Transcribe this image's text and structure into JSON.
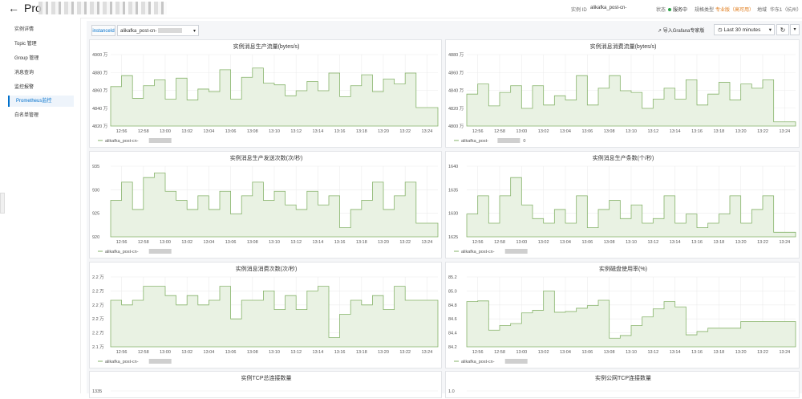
{
  "header": {
    "back_icon": "arrow-left-icon",
    "title": "Pro",
    "instance_id_label": "实例 ID",
    "instance_id_value": "alikafka_post-cn-",
    "status_label": "状态",
    "status_value": "服务中",
    "spec_label": "规格类型",
    "spec_value": "专业版（高可用）",
    "region_label": "地域",
    "region_value": "华东1（杭州）",
    "colors": {
      "accent": "#0070cc",
      "spec": "#e07b1a",
      "status": "#2ba245"
    }
  },
  "sidebar": {
    "items": [
      {
        "label": "实例详情"
      },
      {
        "label": "Topic 管理"
      },
      {
        "label": "Group 管理"
      },
      {
        "label": "消息查询"
      },
      {
        "label": "监控报警"
      },
      {
        "label": "Prometheus监控",
        "active": true
      },
      {
        "label": "白名单管理"
      }
    ]
  },
  "toolbar": {
    "instance_label": "instanceId",
    "instance_value": "alikafka_post-cn-",
    "grafana_label": "导入Grafana专家版",
    "time_range": "Last 30 minutes",
    "refresh_icon": "refresh-icon"
  },
  "x_ticks": [
    "12:56",
    "12:58",
    "13:00",
    "13:02",
    "13:04",
    "13:06",
    "13:08",
    "13:10",
    "13:12",
    "13:14",
    "13:16",
    "13:18",
    "13:20",
    "13:22",
    "13:24"
  ],
  "chart_data": [
    {
      "type": "area",
      "title": "实例消息生产流量(bytes/s)",
      "y_ticks": [
        "4820 万",
        "4840 万",
        "4860 万",
        "4880 万",
        "4900 万"
      ],
      "ylim": [
        4820,
        4905
      ],
      "legend": "alikafka_post-cn-",
      "x": [
        "12:55",
        "12:56",
        "12:57",
        "12:58",
        "12:59",
        "13:00",
        "13:01",
        "13:02",
        "13:03",
        "13:04",
        "13:05",
        "13:06",
        "13:07",
        "13:08",
        "13:09",
        "13:10",
        "13:11",
        "13:12",
        "13:13",
        "13:14",
        "13:15",
        "13:16",
        "13:17",
        "13:18",
        "13:19",
        "13:20",
        "13:21",
        "13:22",
        "13:23",
        "13:24",
        "13:25"
      ],
      "values": [
        4867,
        4880,
        4853,
        4868,
        4875,
        4852,
        4877,
        4851,
        4864,
        4861,
        4887,
        4852,
        4878,
        4889,
        4871,
        4869,
        4856,
        4862,
        4873,
        4862,
        4883,
        4855,
        4868,
        4881,
        4861,
        4876,
        4870,
        4883,
        4842,
        4842,
        4842
      ]
    },
    {
      "type": "area",
      "title": "实例消息消费流量(bytes/s)",
      "y_ticks": [
        "4800 万",
        "4820 万",
        "4840 万",
        "4860 万",
        "4880 万"
      ],
      "ylim": [
        4800,
        4885
      ],
      "legend": "alikafka_post-",
      "legend_suffix": "0",
      "x": [
        "12:55",
        "12:56",
        "12:57",
        "12:58",
        "12:59",
        "13:00",
        "13:01",
        "13:02",
        "13:03",
        "13:04",
        "13:05",
        "13:06",
        "13:07",
        "13:08",
        "13:09",
        "13:10",
        "13:11",
        "13:12",
        "13:13",
        "13:14",
        "13:15",
        "13:16",
        "13:17",
        "13:18",
        "13:19",
        "13:20",
        "13:21",
        "13:22",
        "13:23",
        "13:24",
        "13:25"
      ],
      "values": [
        4838,
        4850,
        4824,
        4840,
        4848,
        4821,
        4848,
        4825,
        4836,
        4831,
        4860,
        4825,
        4845,
        4860,
        4842,
        4840,
        4821,
        4832,
        4845,
        4832,
        4855,
        4825,
        4838,
        4852,
        4831,
        4850,
        4845,
        4855,
        4805,
        4805,
        4805
      ]
    },
    {
      "type": "area",
      "title": "实例消息生产发送次数(次/秒)",
      "y_ticks": [
        "920",
        "925",
        "930",
        "935"
      ],
      "ylim": [
        920,
        935.5
      ],
      "legend": "alikafka_post-cn-",
      "x": [
        "12:55",
        "12:56",
        "12:57",
        "12:58",
        "12:59",
        "13:00",
        "13:01",
        "13:02",
        "13:03",
        "13:04",
        "13:05",
        "13:06",
        "13:07",
        "13:08",
        "13:09",
        "13:10",
        "13:11",
        "13:12",
        "13:13",
        "13:14",
        "13:15",
        "13:16",
        "13:17",
        "13:18",
        "13:19",
        "13:20",
        "13:21",
        "13:22",
        "13:23",
        "13:24",
        "13:25"
      ],
      "values": [
        928,
        932,
        926,
        933,
        934,
        930,
        928,
        926,
        929,
        926,
        930,
        925,
        929,
        932,
        928,
        930,
        927,
        926,
        930,
        927,
        929,
        922,
        926,
        928,
        932,
        926,
        929,
        932,
        923,
        923,
        923
      ]
    },
    {
      "type": "area",
      "title": "实例消息生产条数(个/秒)",
      "y_ticks": [
        "1625",
        "1630",
        "1635",
        "1640"
      ],
      "ylim": [
        1625,
        1640.5
      ],
      "legend": "alikafka_post-cn-",
      "x": [
        "12:55",
        "12:56",
        "12:57",
        "12:58",
        "12:59",
        "13:00",
        "13:01",
        "13:02",
        "13:03",
        "13:04",
        "13:05",
        "13:06",
        "13:07",
        "13:08",
        "13:09",
        "13:10",
        "13:11",
        "13:12",
        "13:13",
        "13:14",
        "13:15",
        "13:16",
        "13:17",
        "13:18",
        "13:19",
        "13:20",
        "13:21",
        "13:22",
        "13:23",
        "13:24",
        "13:25"
      ],
      "values": [
        1630,
        1634,
        1628,
        1634,
        1638,
        1632,
        1629,
        1628,
        1631,
        1628,
        1634,
        1627,
        1631,
        1633,
        1629,
        1632,
        1628,
        1629,
        1634,
        1628,
        1630,
        1627,
        1628,
        1630,
        1634,
        1628,
        1631,
        1634,
        1626,
        1626,
        1626
      ]
    },
    {
      "type": "area",
      "title": "实例消息消费次数(次/秒)",
      "y_ticks": [
        "2.1 万",
        "2.2 万",
        "2.2 万",
        "2.2 万",
        "2.2 万",
        "2.2 万"
      ],
      "ylim": [
        2.1,
        2.25
      ],
      "legend": "alikafka_post-cn-",
      "x": [
        "12:55",
        "12:56",
        "12:57",
        "12:58",
        "12:59",
        "13:00",
        "13:01",
        "13:02",
        "13:03",
        "13:04",
        "13:05",
        "13:06",
        "13:07",
        "13:08",
        "13:09",
        "13:10",
        "13:11",
        "13:12",
        "13:13",
        "13:14",
        "13:15",
        "13:16",
        "13:17",
        "13:18",
        "13:19",
        "13:20",
        "13:21",
        "13:22",
        "13:23",
        "13:24",
        "13:25"
      ],
      "values": [
        2.2,
        2.19,
        2.2,
        2.23,
        2.23,
        2.21,
        2.19,
        2.21,
        2.19,
        2.2,
        2.23,
        2.16,
        2.2,
        2.2,
        2.22,
        2.18,
        2.21,
        2.18,
        2.22,
        2.23,
        2.12,
        2.17,
        2.2,
        2.19,
        2.21,
        2.18,
        2.23,
        2.2,
        2.2,
        2.2,
        2.2
      ]
    },
    {
      "type": "area",
      "title": "实例磁盘使用率(%)",
      "y_ticks": [
        "84.2",
        "84.4",
        "84.6",
        "84.8",
        "85.0",
        "85.2"
      ],
      "ylim": [
        84.2,
        85.25
      ],
      "legend": "alikafka_post-cn-",
      "x": [
        "12:55",
        "12:56",
        "12:57",
        "12:58",
        "12:59",
        "13:00",
        "13:01",
        "13:02",
        "13:03",
        "13:04",
        "13:05",
        "13:06",
        "13:07",
        "13:08",
        "13:09",
        "13:10",
        "13:11",
        "13:12",
        "13:13",
        "13:14",
        "13:15",
        "13:16",
        "13:17",
        "13:18",
        "13:19",
        "13:20",
        "13:21",
        "13:22",
        "13:23",
        "13:24",
        "13:25"
      ],
      "values": [
        84.88,
        84.89,
        84.45,
        84.52,
        84.55,
        84.71,
        84.75,
        85.04,
        84.72,
        84.73,
        84.78,
        84.82,
        84.9,
        84.33,
        84.37,
        84.52,
        84.65,
        84.77,
        84.88,
        84.8,
        84.38,
        84.43,
        84.48,
        84.48,
        84.48,
        84.58,
        84.58,
        84.58,
        84.58,
        84.58,
        84.58
      ]
    },
    {
      "type": "area",
      "title": "实例TCP总连接数量",
      "y_ticks": [
        "1335"
      ],
      "ylim": [
        1330,
        1336
      ],
      "legend": "",
      "x": [],
      "values": []
    },
    {
      "type": "area",
      "title": "实例公网TCP连接数量",
      "y_ticks": [
        "1.0"
      ],
      "ylim": [
        0,
        1.05
      ],
      "legend": "",
      "x": [],
      "values": []
    }
  ]
}
